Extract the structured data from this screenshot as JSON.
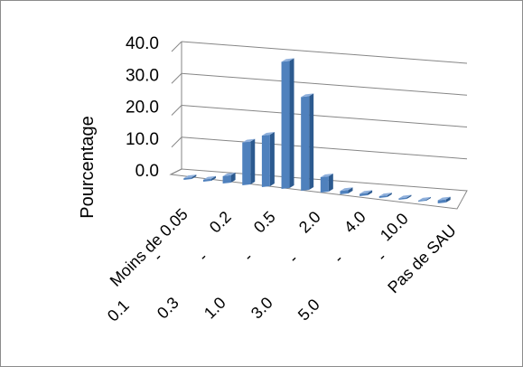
{
  "chart_data": {
    "type": "bar",
    "title": "",
    "xlabel": "",
    "ylabel": "Pourcentage",
    "ylim": [
      0,
      40
    ],
    "yticks": [
      "0.0",
      "10.0",
      "20.0",
      "30.0",
      "40.0"
    ],
    "grid": true,
    "legend": "none",
    "bar_color": "#4F81BD",
    "categories": [
      "Moins de 0.05",
      "0.05 - 0.1",
      "0.1 - 0.2",
      "0.2 - 0.3",
      "0.3 - 0.5",
      "0.5 - 1.0",
      "1.0 - 2.0",
      "2.0 - 3.0",
      "3.0 - 4.0",
      "4.0 - 5.0",
      "5.0 - 10.0",
      "10.0 - ...",
      "... - Pas de SAU",
      "Pas de SAU"
    ],
    "category_labels_visible": [
      "Moins de 0.05",
      "0.1",
      "0.2",
      "0.3",
      "0.5",
      "1.0",
      "2.0",
      "3.0",
      "4.0",
      "5.0",
      "10.0",
      "Pas de SAU"
    ],
    "values": [
      0.5,
      0.6,
      2.2,
      12.8,
      15.4,
      38.0,
      28.0,
      4.6,
      1.0,
      0.7,
      0.5,
      0.4,
      0.3,
      0.9
    ]
  }
}
